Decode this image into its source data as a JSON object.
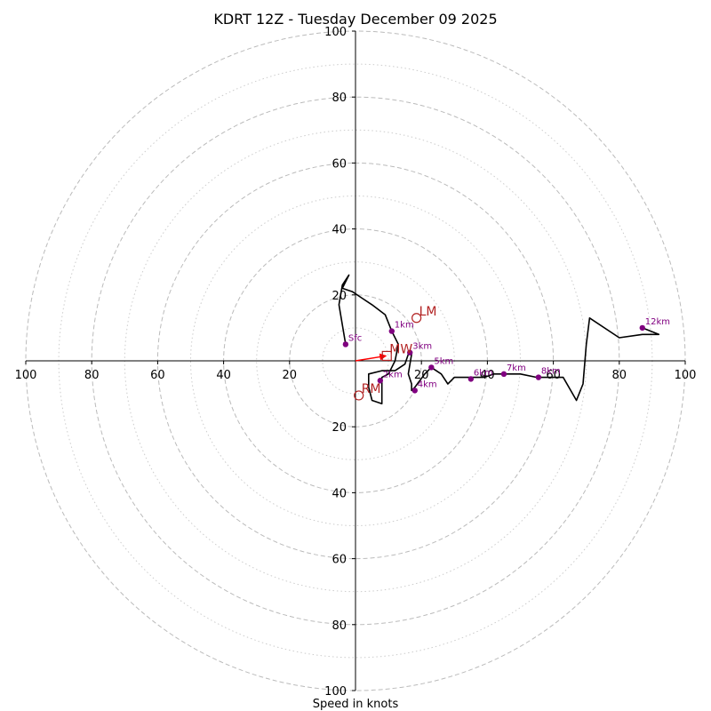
{
  "chart_data": {
    "type": "hodograph",
    "title": "KDRT 12Z - Tuesday December 09 2025",
    "xlabel": "Speed in knots",
    "units": "knots",
    "range": [
      -100,
      100
    ],
    "x_ticks": [
      {
        "value": -100,
        "label": "100"
      },
      {
        "value": -80,
        "label": "80"
      },
      {
        "value": -60,
        "label": "60"
      },
      {
        "value": -40,
        "label": "40"
      },
      {
        "value": -20,
        "label": "20"
      },
      {
        "value": 20,
        "label": "20"
      },
      {
        "value": 40,
        "label": "40"
      },
      {
        "value": 60,
        "label": "60"
      },
      {
        "value": 80,
        "label": "80"
      },
      {
        "value": 100,
        "label": "100"
      }
    ],
    "y_ticks": [
      {
        "value": 100,
        "label": "100"
      },
      {
        "value": 80,
        "label": "80"
      },
      {
        "value": 60,
        "label": "60"
      },
      {
        "value": 40,
        "label": "40"
      },
      {
        "value": 20,
        "label": "20"
      },
      {
        "value": -20,
        "label": "20"
      },
      {
        "value": -40,
        "label": "40"
      },
      {
        "value": -60,
        "label": "60"
      },
      {
        "value": -80,
        "label": "80"
      },
      {
        "value": -100,
        "label": "100"
      }
    ],
    "rings_major": [
      20,
      40,
      60,
      80,
      100
    ],
    "rings_minor": [
      10,
      30,
      50,
      70,
      90
    ],
    "trace_color": "#000000",
    "height_marker_color": "#800080",
    "motion_color": "#b22222",
    "mean_wind_arrow_color": "#ff0000",
    "ring_color": "#bbbbbb",
    "hodograph": [
      {
        "u": -3,
        "v": 5
      },
      {
        "u": -5,
        "v": 17
      },
      {
        "u": -4,
        "v": 23
      },
      {
        "u": -2,
        "v": 26
      },
      {
        "u": -4,
        "v": 22
      },
      {
        "u": -1,
        "v": 21
      },
      {
        "u": 2,
        "v": 19
      },
      {
        "u": 5,
        "v": 17
      },
      {
        "u": 9,
        "v": 14
      },
      {
        "u": 11,
        "v": 9
      },
      {
        "u": 13,
        "v": 5
      },
      {
        "u": 12,
        "v": 0
      },
      {
        "u": 10,
        "v": -4
      },
      {
        "u": 8,
        "v": -5
      },
      {
        "u": 8,
        "v": -13
      },
      {
        "u": 5,
        "v": -12
      },
      {
        "u": 4,
        "v": -8
      },
      {
        "u": 4,
        "v": -4
      },
      {
        "u": 8,
        "v": -3
      },
      {
        "u": 12,
        "v": -3
      },
      {
        "u": 15,
        "v": -1
      },
      {
        "u": 16,
        "v": 2
      },
      {
        "u": 17,
        "v": 2
      },
      {
        "u": 16,
        "v": -4
      },
      {
        "u": 17,
        "v": -7
      },
      {
        "u": 17,
        "v": -9
      },
      {
        "u": 18,
        "v": -8
      },
      {
        "u": 21,
        "v": -4
      },
      {
        "u": 23,
        "v": -2
      },
      {
        "u": 26,
        "v": -4
      },
      {
        "u": 28,
        "v": -7
      },
      {
        "u": 30,
        "v": -5
      },
      {
        "u": 33,
        "v": -5
      },
      {
        "u": 35,
        "v": -5
      },
      {
        "u": 39,
        "v": -5
      },
      {
        "u": 42,
        "v": -4
      },
      {
        "u": 45,
        "v": -4
      },
      {
        "u": 50,
        "v": -4
      },
      {
        "u": 55,
        "v": -5
      },
      {
        "u": 59,
        "v": -5
      },
      {
        "u": 63,
        "v": -5
      },
      {
        "u": 67,
        "v": -12
      },
      {
        "u": 69,
        "v": -7
      },
      {
        "u": 70,
        "v": 5
      },
      {
        "u": 71,
        "v": 13
      },
      {
        "u": 80,
        "v": 7
      },
      {
        "u": 87,
        "v": 8
      },
      {
        "u": 92,
        "v": 8
      },
      {
        "u": 87,
        "v": 10
      }
    ],
    "height_markers": [
      {
        "label": "Sfc",
        "u": -3,
        "v": 5
      },
      {
        "label": "1km",
        "u": 11,
        "v": 9
      },
      {
        "label": "2km",
        "u": 7.5,
        "v": -6
      },
      {
        "label": "3km",
        "u": 16.5,
        "v": 2.5
      },
      {
        "label": "4km",
        "u": 18,
        "v": -9
      },
      {
        "label": "5km",
        "u": 23,
        "v": -2
      },
      {
        "label": "6km",
        "u": 35,
        "v": -5.5
      },
      {
        "label": "7km",
        "u": 45,
        "v": -4
      },
      {
        "label": "8km",
        "u": 55.5,
        "v": -5
      },
      {
        "label": "12km",
        "u": 87,
        "v": 10
      }
    ],
    "storm_motion": [
      {
        "label": "LM",
        "u": 18.5,
        "v": 13
      },
      {
        "label": "RM",
        "u": 1,
        "v": -10.5
      },
      {
        "label": "MW",
        "u": 9.5,
        "v": 1.5
      }
    ],
    "mean_wind_vector": {
      "u": 9.5,
      "v": 1.5
    }
  }
}
